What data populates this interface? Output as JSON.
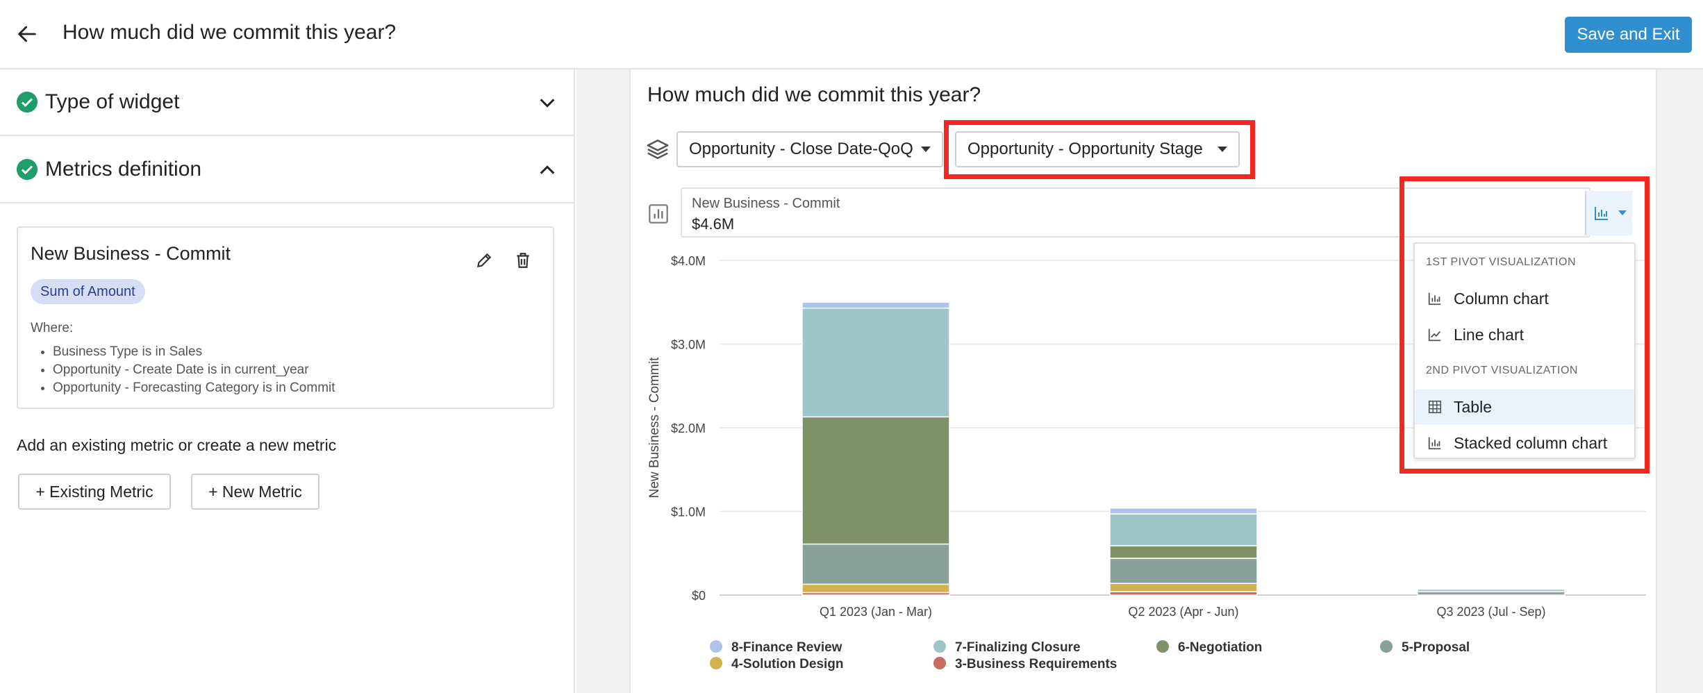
{
  "header": {
    "title": "How much did we commit this year?",
    "save_label": "Save and Exit"
  },
  "left": {
    "sections": [
      {
        "label": "Type of widget"
      },
      {
        "label": "Metrics definition"
      }
    ],
    "metric": {
      "title": "New Business - Commit",
      "tag": "Sum of Amount",
      "where_label": "Where:",
      "conditions": [
        "Business Type is in Sales",
        "Opportunity - Create Date is in current_year",
        "Opportunity - Forecasting Category is in Commit"
      ]
    },
    "add_text": "Add an existing metric or create a new metric",
    "existing_label": "+ Existing Metric",
    "new_label": "+ New Metric"
  },
  "widget": {
    "title": "How much did we commit this year?",
    "pivot1": "Opportunity - Close Date-QoQ",
    "pivot2": "Opportunity - Opportunity Stage",
    "metric_label": "New Business - Commit",
    "metric_value": "$4.6M"
  },
  "viz_menu": {
    "head1": "1ST PIVOT VISUALIZATION",
    "head2": "2ND PIVOT VISUALIZATION",
    "items": [
      "Column chart",
      "Line chart",
      "Table",
      "Stacked column chart"
    ],
    "selected": "Table"
  },
  "chart_data": {
    "type": "bar",
    "stacked": true,
    "ylabel": "New Business - Commit",
    "yticks": [
      "$0",
      "$1.0M",
      "$2.0M",
      "$3.0M",
      "$4.0M"
    ],
    "ylim": [
      0,
      4.0
    ],
    "categories": [
      "Q1 2023 (Jan - Mar)",
      "Q2 2023 (Apr - Jun)",
      "Q3 2023 (Jul - Sep)"
    ],
    "series": [
      {
        "name": "3-Business Requirements",
        "color": "#c96b63",
        "values": [
          0.03,
          0.04,
          0.0
        ]
      },
      {
        "name": "4-Solution Design",
        "color": "#d2b24f",
        "values": [
          0.1,
          0.1,
          0.0
        ]
      },
      {
        "name": "5-Proposal",
        "color": "#8aa199",
        "values": [
          0.48,
          0.3,
          0.04
        ]
      },
      {
        "name": "6-Negotiation",
        "color": "#7e9268",
        "values": [
          1.52,
          0.15,
          0.0
        ]
      },
      {
        "name": "7-Finalizing Closure",
        "color": "#9ec5c7",
        "values": [
          1.3,
          0.38,
          0.03
        ]
      },
      {
        "name": "8-Finance Review",
        "color": "#adc4e8",
        "values": [
          0.07,
          0.07,
          0.0
        ]
      }
    ],
    "legend": [
      [
        "8-Finance Review",
        "7-Finalizing Closure",
        "6-Negotiation",
        "5-Proposal"
      ],
      [
        "4-Solution Design",
        "3-Business Requirements"
      ]
    ],
    "grid": true,
    "legend_position": "bottom"
  }
}
